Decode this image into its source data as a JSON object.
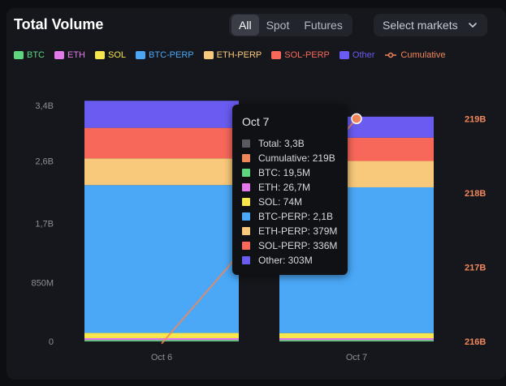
{
  "title": "Total Volume",
  "filters": {
    "options": [
      {
        "label": "All",
        "active": true
      },
      {
        "label": "Spot",
        "active": false
      },
      {
        "label": "Futures",
        "active": false
      }
    ],
    "select_label": "Select markets",
    "select_icon": "chevron-down-icon"
  },
  "legend": [
    {
      "label": "BTC",
      "color": "#5dd67f"
    },
    {
      "label": "ETH",
      "color": "#e47aea"
    },
    {
      "label": "SOL",
      "color": "#f7e64c"
    },
    {
      "label": "BTC-PERP",
      "color": "#4ba8f7"
    },
    {
      "label": "ETH-PERP",
      "color": "#f8c97a"
    },
    {
      "label": "SOL-PERP",
      "color": "#f8685a"
    },
    {
      "label": "Other",
      "color": "#6a5cf0"
    },
    {
      "label": "Cumulative",
      "color": "#f0875a"
    }
  ],
  "chart_data": {
    "type": "bar",
    "stacked": true,
    "categories": [
      "Oct 6",
      "Oct 7"
    ],
    "y_left": {
      "ticks": [
        0,
        850000000,
        1700000000,
        2600000000,
        3400000000
      ],
      "tick_labels": [
        "0",
        "850M",
        "1,7B",
        "2,6B",
        "3,4B"
      ],
      "range": [
        0,
        3400000000
      ]
    },
    "y_right": {
      "ticks": [
        216,
        217,
        218,
        219
      ],
      "tick_labels": [
        "216B",
        "217B",
        "218B",
        "219B"
      ],
      "range": [
        216,
        219.2
      ],
      "color": "#f0875a"
    },
    "series": [
      {
        "name": "BTC",
        "color": "#5dd67f",
        "values": [
          20000000,
          19500000
        ]
      },
      {
        "name": "ETH",
        "color": "#e47aea",
        "values": [
          27000000,
          26700000
        ]
      },
      {
        "name": "SOL",
        "color": "#f7e64c",
        "values": [
          75000000,
          74000000
        ]
      },
      {
        "name": "BTC-PERP",
        "color": "#4ba8f7",
        "values": [
          2130000000,
          2100000000
        ]
      },
      {
        "name": "ETH-PERP",
        "color": "#f8c97a",
        "values": [
          385000000,
          379000000
        ]
      },
      {
        "name": "SOL-PERP",
        "color": "#f8685a",
        "values": [
          440000000,
          336000000
        ]
      },
      {
        "name": "Other",
        "color": "#6a5cf0",
        "values": [
          390000000,
          303000000
        ]
      }
    ],
    "cumulative": {
      "name": "Cumulative",
      "color": "#f0875a",
      "values": [
        215.97,
        219.0
      ]
    },
    "grid": false,
    "legend_position": "top"
  },
  "tooltip": {
    "title": "Oct 7",
    "rows": [
      {
        "label": "Total: 3,3B",
        "color": "#585a62"
      },
      {
        "label": "Cumulative: 219B",
        "color": "#f0875a"
      },
      {
        "label": "BTC: 19,5M",
        "color": "#5dd67f"
      },
      {
        "label": "ETH: 26,7M",
        "color": "#e47aea"
      },
      {
        "label": "SOL: 74M",
        "color": "#f7e64c"
      },
      {
        "label": "BTC-PERP: 2,1B",
        "color": "#4ba8f7"
      },
      {
        "label": "ETH-PERP: 379M",
        "color": "#f8c97a"
      },
      {
        "label": "SOL-PERP: 336M",
        "color": "#f8685a"
      },
      {
        "label": "Other: 303M",
        "color": "#6a5cf0"
      }
    ]
  }
}
